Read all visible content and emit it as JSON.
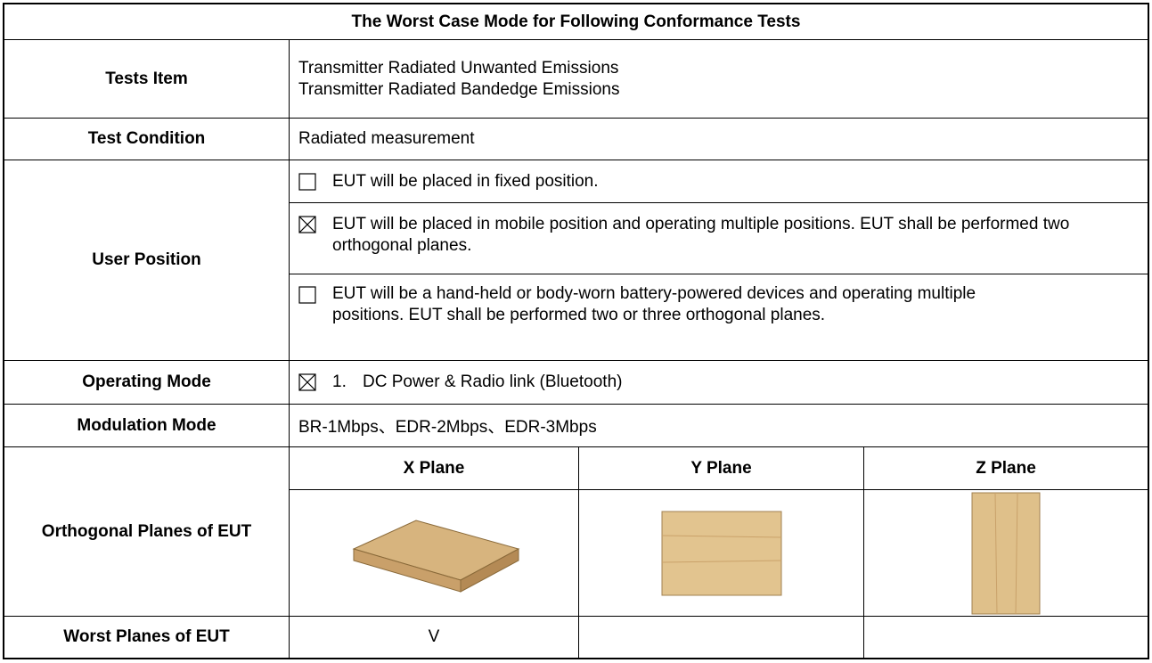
{
  "table": {
    "title": "The Worst Case Mode for Following Conformance Tests",
    "tests_item": {
      "label": "Tests Item",
      "lines": [
        "Transmitter Radiated Unwanted Emissions",
        "Transmitter Radiated Bandedge Emissions"
      ]
    },
    "test_condition": {
      "label": "Test Condition",
      "value": "Radiated measurement"
    },
    "user_position": {
      "label": "User Position",
      "options": [
        {
          "checked": false,
          "text": "EUT will be placed in fixed position."
        },
        {
          "checked": true,
          "text": "EUT will be placed in mobile position and operating multiple positions. EUT shall be performed two orthogonal planes."
        },
        {
          "checked": false,
          "text": "EUT will be a hand-held or body-worn battery-powered devices and operating multiple positions. EUT shall be performed two or three orthogonal planes."
        }
      ]
    },
    "operating_mode": {
      "label": "Operating Mode",
      "checked": true,
      "number": "1.",
      "text": "DC Power & Radio link (Bluetooth)"
    },
    "modulation_mode": {
      "label": "Modulation Mode",
      "value": "BR-1Mbps、EDR-2Mbps、EDR-3Mbps"
    },
    "orthogonal_planes": {
      "label": "Orthogonal Planes of EUT",
      "planes": [
        "X Plane",
        "Y Plane",
        "Z Plane"
      ]
    },
    "worst_planes": {
      "label": "Worst Planes of EUT",
      "x_plane": "V"
    }
  }
}
